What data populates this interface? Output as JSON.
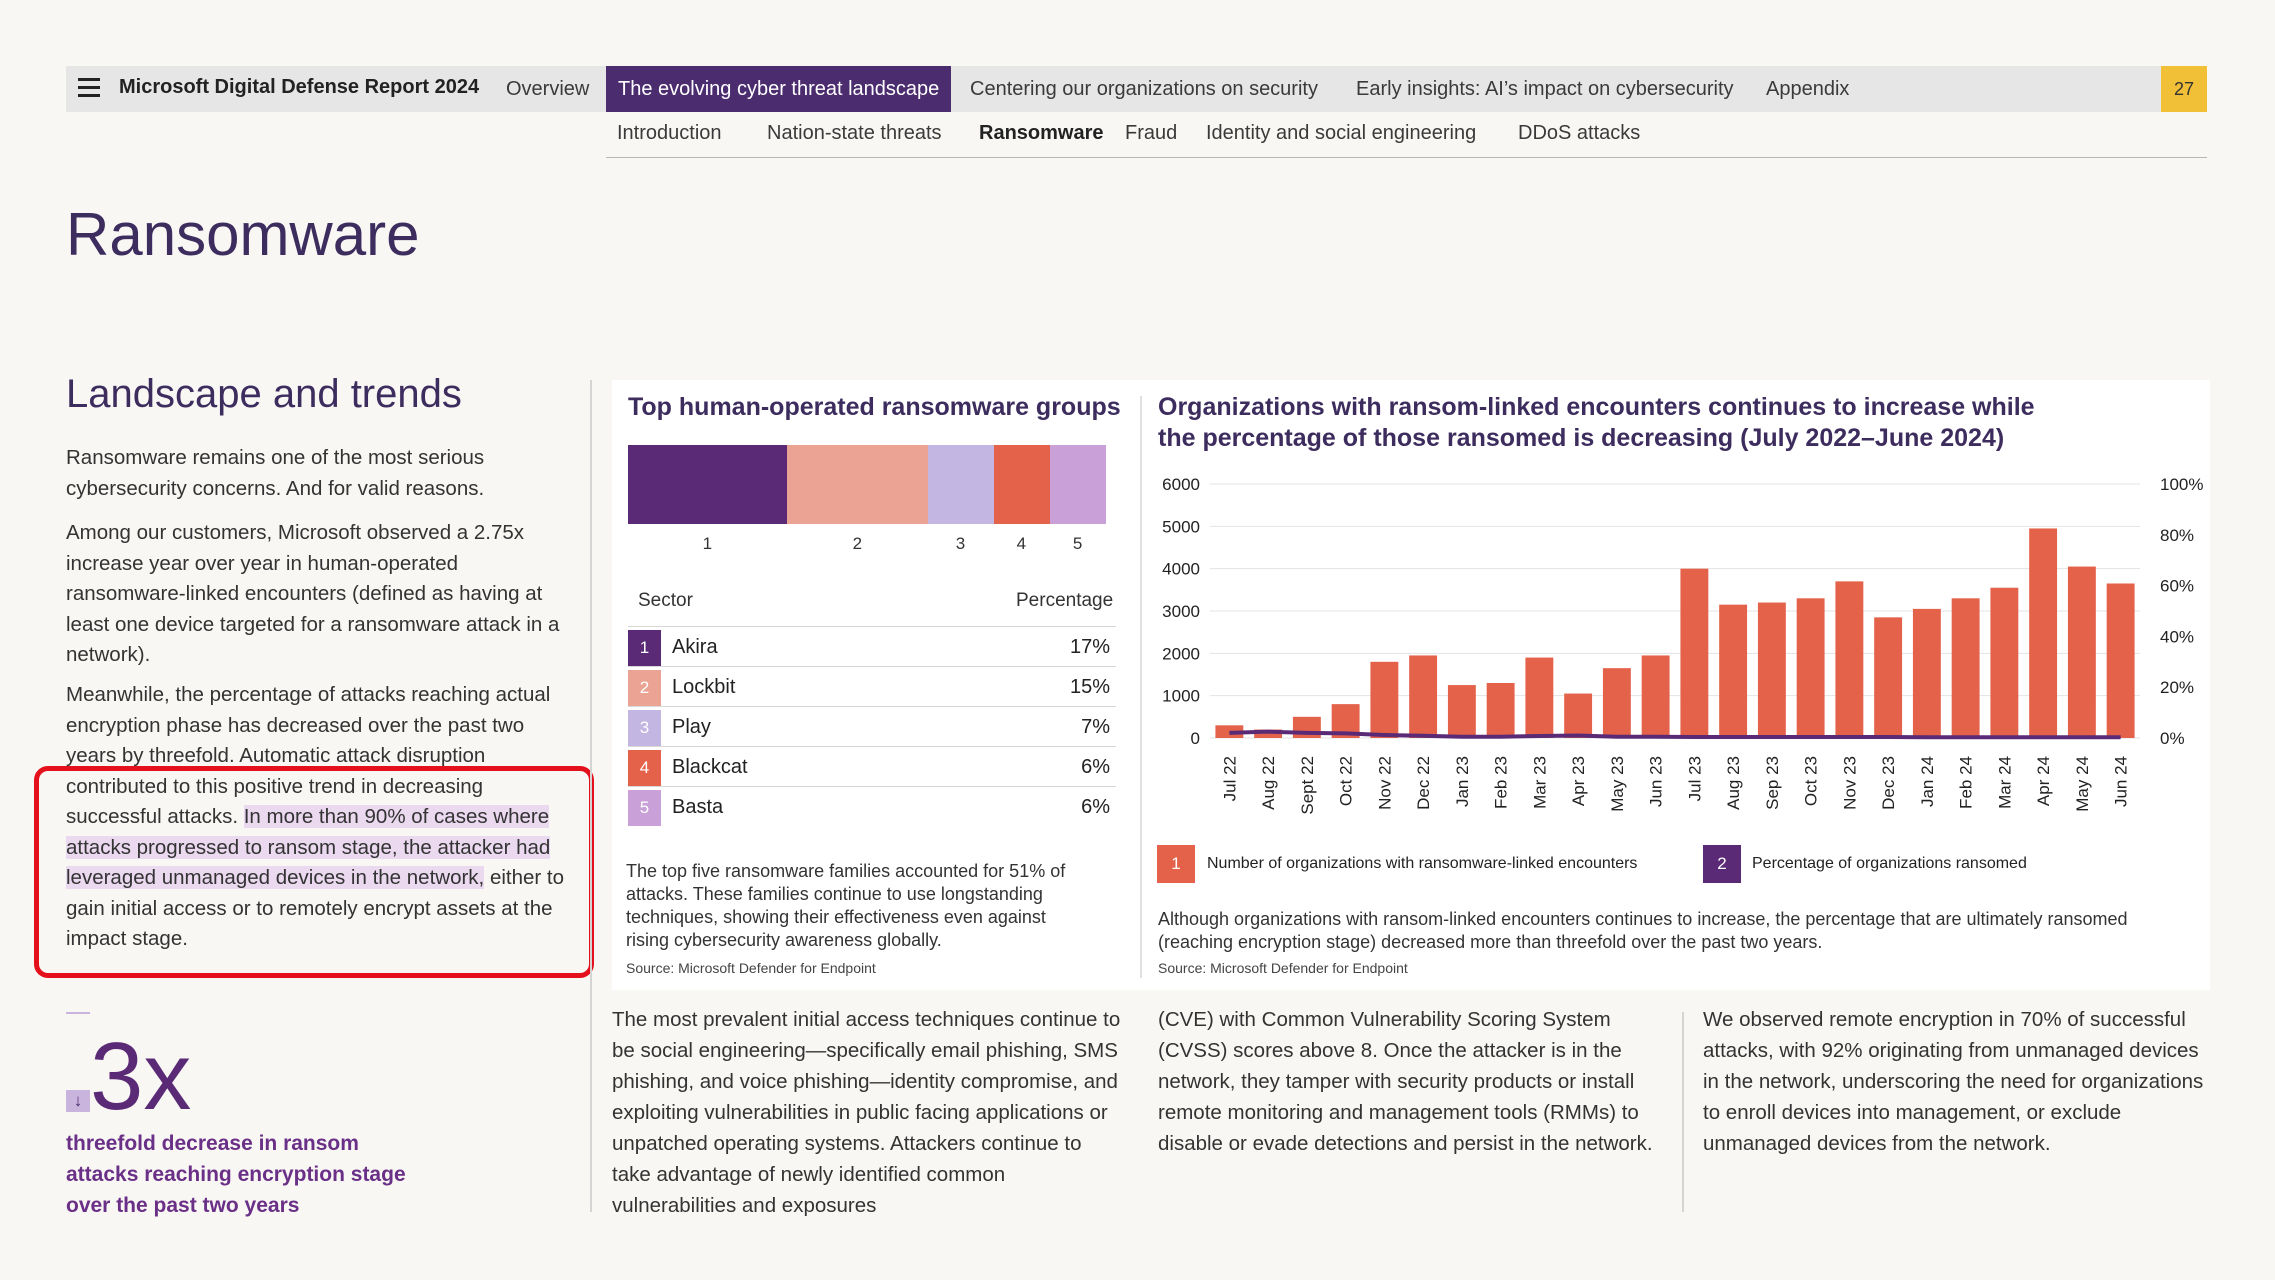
{
  "nav": {
    "title": "Microsoft Digital Defense Report 2024",
    "tabs": [
      "Overview",
      "The evolving cyber threat landscape",
      "Centering our organizations on security",
      "Early insights: AI’s impact on cybersecurity",
      "Appendix"
    ],
    "page_number": "27",
    "subtabs": [
      "Introduction",
      "Nation-state threats",
      "Ransomware",
      "Fraud",
      "Identity and social engineering",
      "DDoS attacks"
    ]
  },
  "page_title": "Ransomware",
  "left": {
    "heading": "Landscape and trends",
    "p1": "Ransomware remains one of the most serious cybersecurity concerns. And for valid reasons.",
    "p2": "Among our customers, Microsoft observed a 2.75x increase year over year in human-operated ransomware-linked encounters (defined as having at least one device targeted for a ransomware attack in a network).",
    "p3a": "Meanwhile, the percentage of attacks reaching actual encryption phase has decreased over the past two years by threefold. Automatic attack disruption contributed to this positive trend in decreasing successful attacks. ",
    "p3b": "In more than 90% of cases where attacks progressed to ransom stage, the attacker had leveraged unmanaged devices in the network,",
    "p3c": " either to gain initial access or to remotely encrypt assets at the impact stage.",
    "stat_arrow": "↓",
    "stat_value": "3x",
    "stat_caption": "threefold decrease in ransom attacks reaching encryption stage over the past two years"
  },
  "groups": {
    "title": "Top human-operated ransomware groups",
    "col_sector": "Sector",
    "col_percentage": "Percentage",
    "rows": [
      {
        "num": "1",
        "name": "Akira",
        "pct": "17%",
        "value": 17,
        "color": "#5b2a76"
      },
      {
        "num": "2",
        "name": "Lockbit",
        "pct": "15%",
        "value": 15,
        "color": "#eba493"
      },
      {
        "num": "3",
        "name": "Play",
        "pct": "7%",
        "value": 7,
        "color": "#c3b6e2"
      },
      {
        "num": "4",
        "name": "Blackcat",
        "pct": "6%",
        "value": 6,
        "color": "#e5624a"
      },
      {
        "num": "5",
        "name": "Basta",
        "pct": "6%",
        "value": 6,
        "color": "#c9a1d8"
      }
    ],
    "note": "The top five ransomware families accounted for 51% of attacks. These families continue to use longstanding techniques, showing their effectiveness even against rising cybersecurity awareness globally.",
    "source": "Source: Microsoft Defender for Endpoint"
  },
  "chart_data": {
    "type": "bar",
    "title": "Organizations with ransom-linked encounters continues to increase while the percentage of those ransomed is decreasing (July 2022–June 2024)",
    "categories": [
      "Jul 22",
      "Aug 22",
      "Sept 22",
      "Oct 22",
      "Nov 22",
      "Dec 22",
      "Jan 23",
      "Feb 23",
      "Mar 23",
      "Apr 23",
      "May 23",
      "Jun 23",
      "Jul 23",
      "Aug 23",
      "Sep 23",
      "Oct 23",
      "Nov 23",
      "Dec 23",
      "Jan 24",
      "Feb 24",
      "Mar 24",
      "Apr 24",
      "May 24",
      "Jun 24"
    ],
    "series": [
      {
        "name": "Number of organizations with ransomware-linked encounters",
        "num": "1",
        "color": "#e5624a",
        "axis": "left",
        "values": [
          300,
          200,
          500,
          800,
          1800,
          1950,
          1250,
          1300,
          1900,
          1050,
          1650,
          1950,
          4000,
          3150,
          3200,
          3300,
          3700,
          2850,
          3050,
          3300,
          3550,
          4950,
          4050,
          3650
        ]
      },
      {
        "name": "Percentage of organizations ransomed",
        "num": "2",
        "color": "#5b2a76",
        "axis": "right",
        "values": [
          2.0,
          2.5,
          2.0,
          1.8,
          1.2,
          0.9,
          0.5,
          0.5,
          0.8,
          1.0,
          0.5,
          0.5,
          0.4,
          0.4,
          0.4,
          0.4,
          0.4,
          0.4,
          0.3,
          0.3,
          0.3,
          0.3,
          0.3,
          0.3
        ]
      }
    ],
    "y_left": {
      "min": 0,
      "max": 6000,
      "ticks": [
        "0",
        "1000",
        "2000",
        "3000",
        "4000",
        "5000",
        "6000"
      ]
    },
    "y_right": {
      "min": 0,
      "max": 100,
      "ticks": [
        "0%",
        "20%",
        "40%",
        "60%",
        "80%",
        "100%"
      ]
    },
    "note": "Although organizations with ransom-linked encounters continues to increase, the percentage that are ultimately ransomed (reaching encryption stage) decreased more than threefold over the past two years.",
    "source": "Source: Microsoft Defender for Endpoint"
  },
  "bottom": {
    "col1": "The most prevalent initial access techniques continue to be social engineering—specifically email phishing, SMS phishing, and voice phishing—identity compromise, and exploiting vulnerabilities in public facing applications or unpatched operating systems. Attackers continue to take advantage of newly identified common vulnerabilities and exposures",
    "col2": "(CVE) with Common Vulnerability Scoring System (CVSS) scores above 8. Once the attacker is in the network, they tamper with security products or install remote monitoring and management tools (RMMs) to disable or evade detections and persist in the network.",
    "col3": "We observed remote encryption in 70% of successful attacks, with 92% originating from unmanaged devices in the network, underscoring the need for organizations to enroll devices into management, or exclude unmanaged devices from the network."
  }
}
